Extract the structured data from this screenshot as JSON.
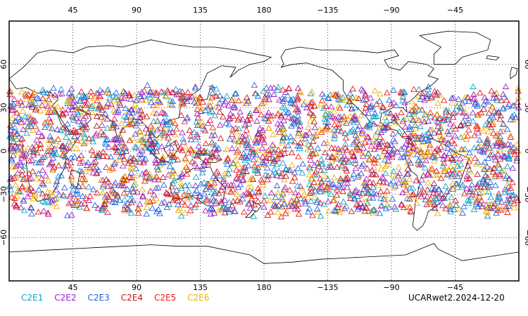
{
  "chart_data": {
    "type": "scatter",
    "map_projection": "cylindrical-equidistant",
    "center_longitude": 180,
    "lon_ticks": [
      {
        "value": 45,
        "label": "45"
      },
      {
        "value": 90,
        "label": "90"
      },
      {
        "value": 135,
        "label": "135"
      },
      {
        "value": 180,
        "label": "180"
      },
      {
        "value": 225,
        "label": "−135"
      },
      {
        "value": 270,
        "label": "−90"
      },
      {
        "value": 315,
        "label": "−45"
      }
    ],
    "lat_ticks": [
      {
        "value": 60,
        "label": "60"
      },
      {
        "value": 30,
        "label": "30"
      },
      {
        "value": 0,
        "label": "0"
      },
      {
        "value": -30,
        "label": "−30"
      },
      {
        "value": -60,
        "label": "−60"
      }
    ],
    "lat_range": [
      -90,
      90
    ],
    "lon_range": [
      0,
      360
    ],
    "grid": true,
    "marker": "triangle-open",
    "point_distribution": {
      "lat_range_deg": [
        -45,
        45
      ],
      "note": "thousands of occultation points, evenly across longitudes"
    },
    "series": [
      {
        "name": "C2E1",
        "color": "#0fa3c9"
      },
      {
        "name": "C2E2",
        "color": "#a020c8"
      },
      {
        "name": "C2E3",
        "color": "#1e64e6"
      },
      {
        "name": "C2E4",
        "color": "#c21818"
      },
      {
        "name": "C2E5",
        "color": "#ee1c1c"
      },
      {
        "name": "C2E6",
        "color": "#f0b000"
      }
    ]
  },
  "footer": {
    "product_label": "UCARwet2.2024-12-20"
  }
}
